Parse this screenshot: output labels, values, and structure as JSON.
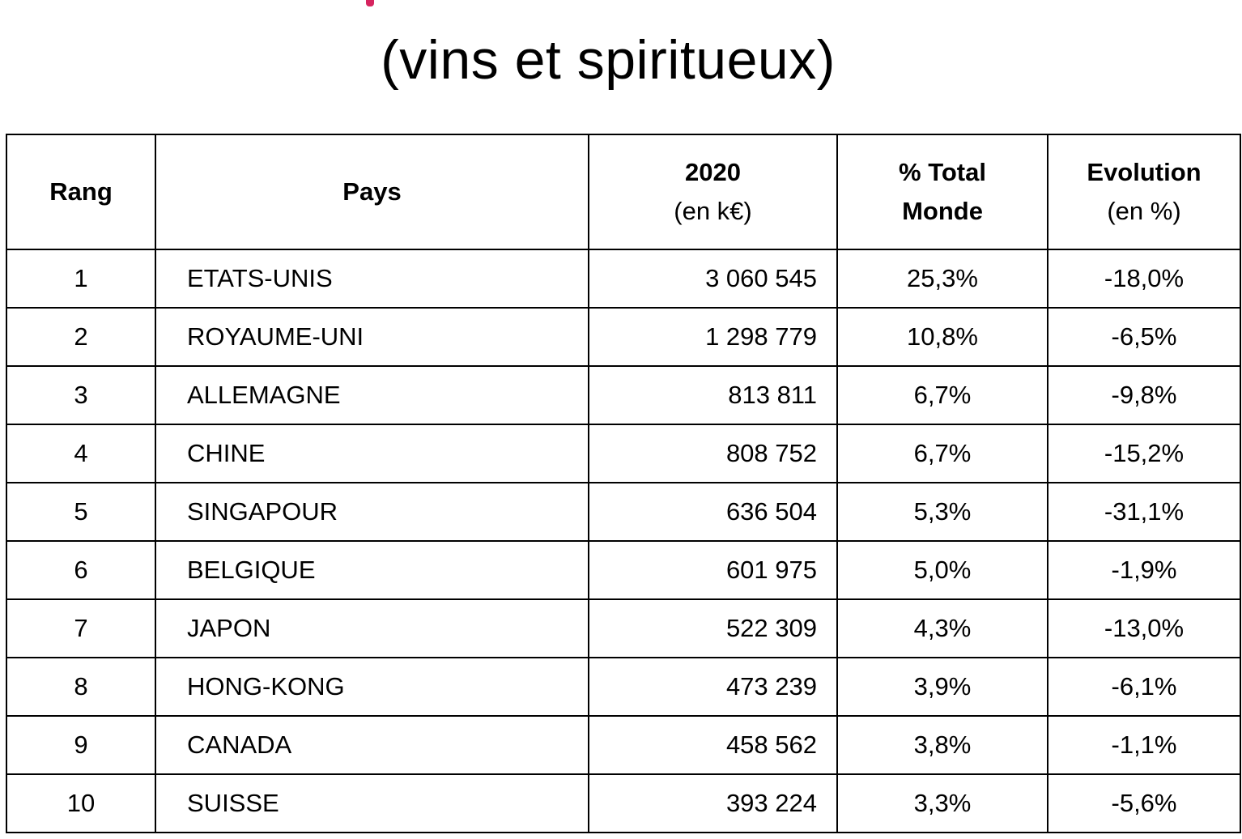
{
  "title": "(vins et spiritueux)",
  "colors": {
    "accent": "#d6245f",
    "text": "#000000",
    "border": "#000000",
    "background": "#ffffff"
  },
  "table": {
    "headers": {
      "rang": "Rang",
      "pays": "Pays",
      "value_line1": "2020",
      "value_line2": "(en k€)",
      "pct_line1": "% Total",
      "pct_line2": "Monde",
      "evo_line1": "Evolution",
      "evo_line2": "(en %)"
    },
    "rows": [
      {
        "rank": "1",
        "country": "ETATS-UNIS",
        "value": "3 060 545",
        "pct": "25,3%",
        "evolution": "-18,0%"
      },
      {
        "rank": "2",
        "country": "ROYAUME-UNI",
        "value": "1 298 779",
        "pct": "10,8%",
        "evolution": "-6,5%"
      },
      {
        "rank": "3",
        "country": "ALLEMAGNE",
        "value": "813 811",
        "pct": "6,7%",
        "evolution": "-9,8%"
      },
      {
        "rank": "4",
        "country": "CHINE",
        "value": "808 752",
        "pct": "6,7%",
        "evolution": "-15,2%"
      },
      {
        "rank": "5",
        "country": "SINGAPOUR",
        "value": "636 504",
        "pct": "5,3%",
        "evolution": "-31,1%"
      },
      {
        "rank": "6",
        "country": "BELGIQUE",
        "value": "601 975",
        "pct": "5,0%",
        "evolution": "-1,9%"
      },
      {
        "rank": "7",
        "country": "JAPON",
        "value": "522 309",
        "pct": "4,3%",
        "evolution": "-13,0%"
      },
      {
        "rank": "8",
        "country": "HONG-KONG",
        "value": "473 239",
        "pct": "3,9%",
        "evolution": "-6,1%"
      },
      {
        "rank": "9",
        "country": "CANADA",
        "value": "458 562",
        "pct": "3,8%",
        "evolution": "-1,1%"
      },
      {
        "rank": "10",
        "country": "SUISSE",
        "value": "393 224",
        "pct": "3,3%",
        "evolution": "-5,6%"
      }
    ]
  }
}
